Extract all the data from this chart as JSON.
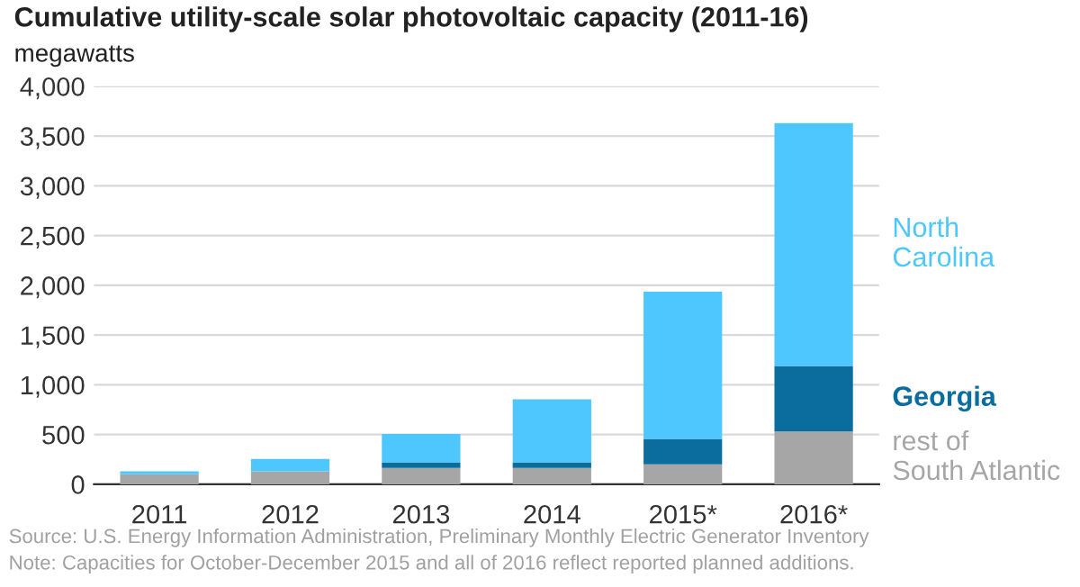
{
  "chart_data": {
    "type": "bar",
    "stacked": true,
    "title": "Cumulative utility-scale solar photovoltaic capacity (2011-16)",
    "ylabel": "megawatts",
    "categories": [
      "2011",
      "2012",
      "2013",
      "2014",
      "2015*",
      "2016*"
    ],
    "series": [
      {
        "name": "rest of\nSouth Atlantic",
        "color": "#a6a6a6",
        "values": [
          100,
          130,
          165,
          165,
          200,
          530
        ]
      },
      {
        "name": "Georgia",
        "color": "#0a6d9d",
        "values": [
          0,
          0,
          55,
          55,
          255,
          660
        ]
      },
      {
        "name": "North\nCarolina",
        "color": "#4dc7fd",
        "values": [
          30,
          125,
          285,
          635,
          1480,
          2440
        ]
      }
    ],
    "ylim": [
      0,
      4000
    ],
    "yticks": [
      {
        "value": 0,
        "label": "0"
      },
      {
        "value": 500,
        "label": "500"
      },
      {
        "value": 1000,
        "label": "1,000"
      },
      {
        "value": 1500,
        "label": "1,500"
      },
      {
        "value": 2000,
        "label": "2,000"
      },
      {
        "value": 2500,
        "label": "2,500"
      },
      {
        "value": 3000,
        "label": "3,000"
      },
      {
        "value": 3500,
        "label": "3,500"
      },
      {
        "value": 4000,
        "label": "4,000"
      }
    ],
    "grid": "y",
    "legend": false,
    "annotations": [
      "Source: U.S. Energy Information Administration, Preliminary Monthly Electric Generator Inventory",
      "Note: Capacities for October-December 2015 and all of 2016 reflect reported planned additions."
    ]
  }
}
